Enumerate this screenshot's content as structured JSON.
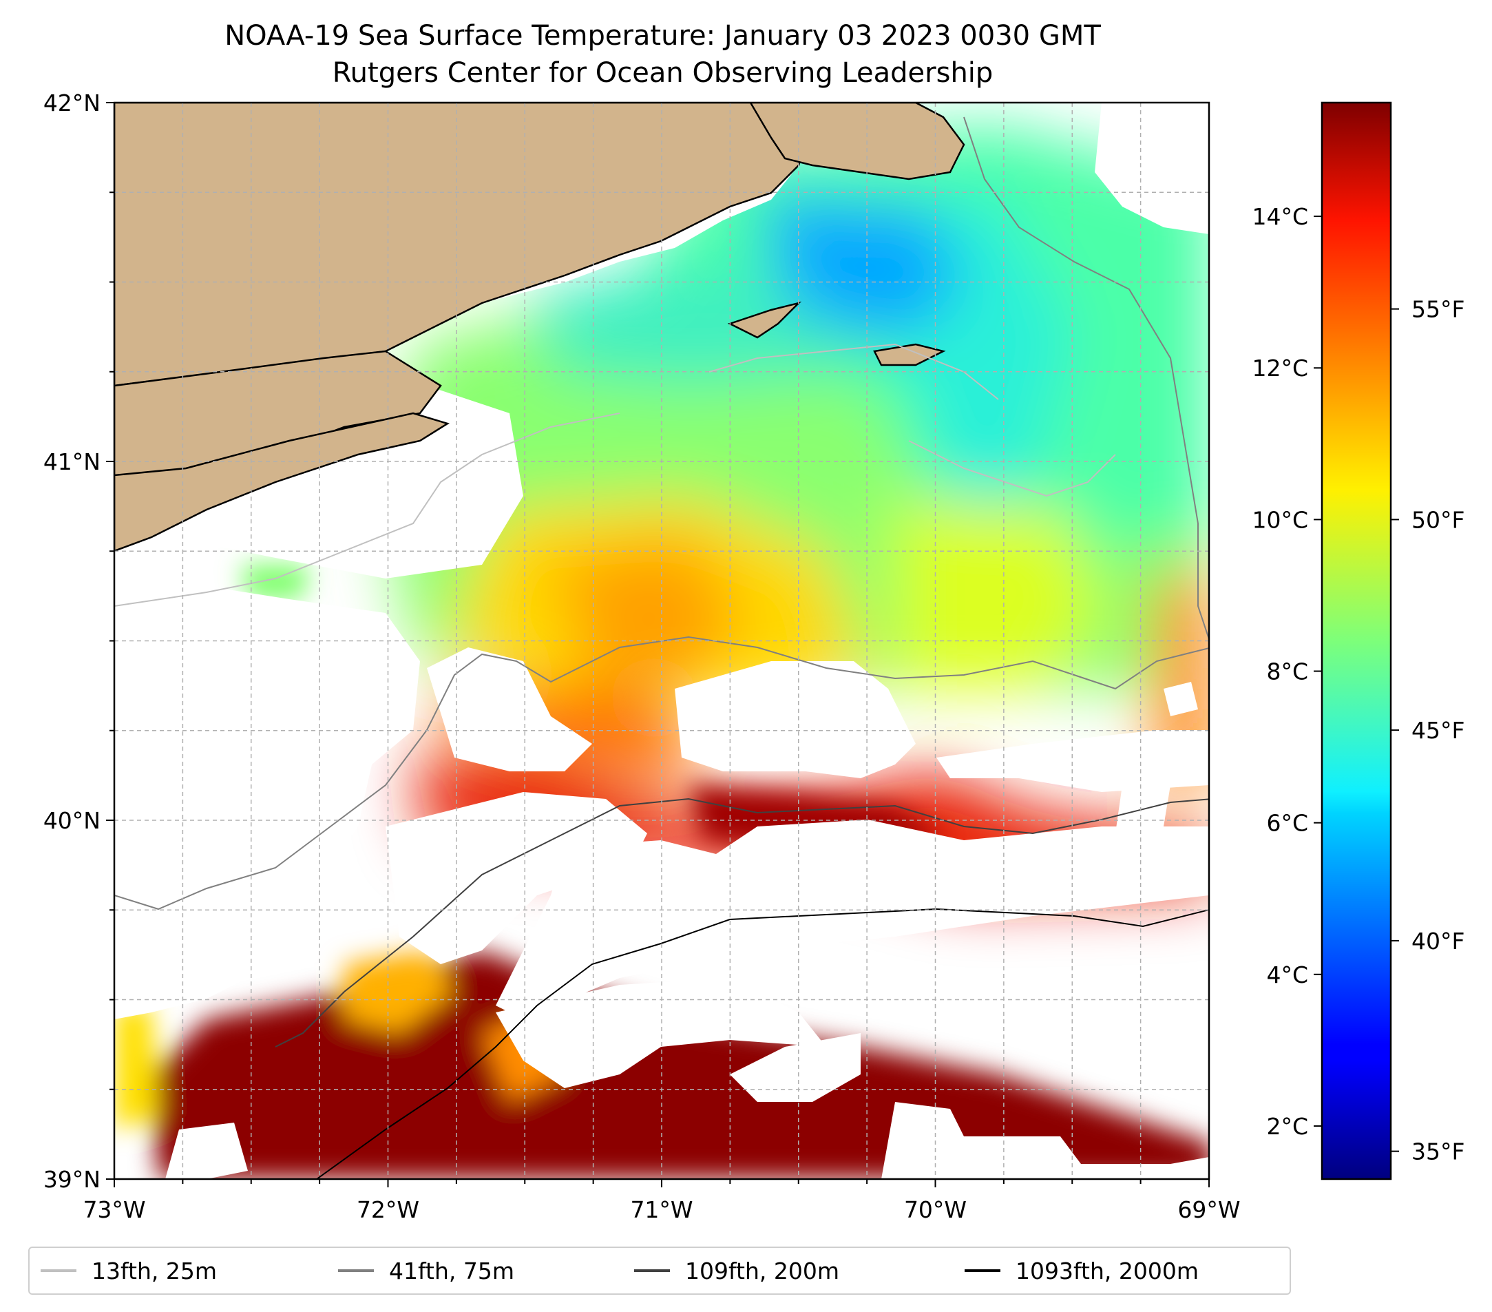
{
  "title": {
    "line1": "NOAA-19 Sea Surface Temperature: January 03 2023 0030 GMT",
    "line2": "Rutgers Center for Ocean Observing Leadership"
  },
  "axes": {
    "lon_ticks": [
      "73°W",
      "72°W",
      "71°W",
      "70°W",
      "69°W"
    ],
    "lat_ticks": [
      "42°N",
      "41°N",
      "40°N",
      "39°N"
    ],
    "lon_range": [
      -73,
      -69
    ],
    "lat_range": [
      39,
      42
    ],
    "grid": true
  },
  "colorbar": {
    "celsius_ticks": [
      "14°C",
      "12°C",
      "10°C",
      "8°C",
      "6°C",
      "4°C",
      "2°C"
    ],
    "fahrenheit_ticks": [
      "55°F",
      "50°F",
      "45°F",
      "40°F",
      "35°F"
    ],
    "celsius_values": [
      14,
      12,
      10,
      8,
      6,
      4,
      2
    ],
    "fahrenheit_values": [
      55,
      50,
      45,
      40,
      35
    ],
    "range_c": [
      1.3,
      15.5
    ],
    "colormap": "jet"
  },
  "legend": {
    "items": [
      {
        "label": "13fth, 25m",
        "color": "#c0c0c0"
      },
      {
        "label": "41fth, 75m",
        "color": "#808080"
      },
      {
        "label": "109fth, 200m",
        "color": "#404040"
      },
      {
        "label": "1093fth, 2000m",
        "color": "#000000"
      }
    ]
  },
  "colors": {
    "land": "#d2b48c",
    "no_data": "#ffffff"
  }
}
